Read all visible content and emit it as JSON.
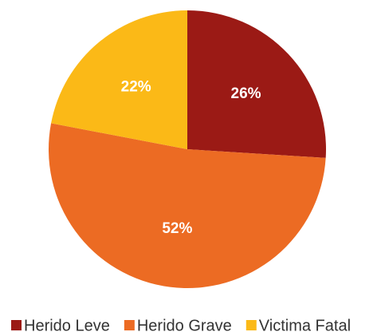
{
  "chart_data": {
    "type": "pie",
    "categories": [
      "Herido Leve",
      "Herido Grave",
      "Victima Fatal"
    ],
    "values": [
      26,
      52,
      22
    ],
    "value_labels": [
      "26%",
      "52%",
      "22%"
    ],
    "colors": [
      "#9b1a15",
      "#ec6b23",
      "#fbb917"
    ],
    "legend": "bottom"
  }
}
